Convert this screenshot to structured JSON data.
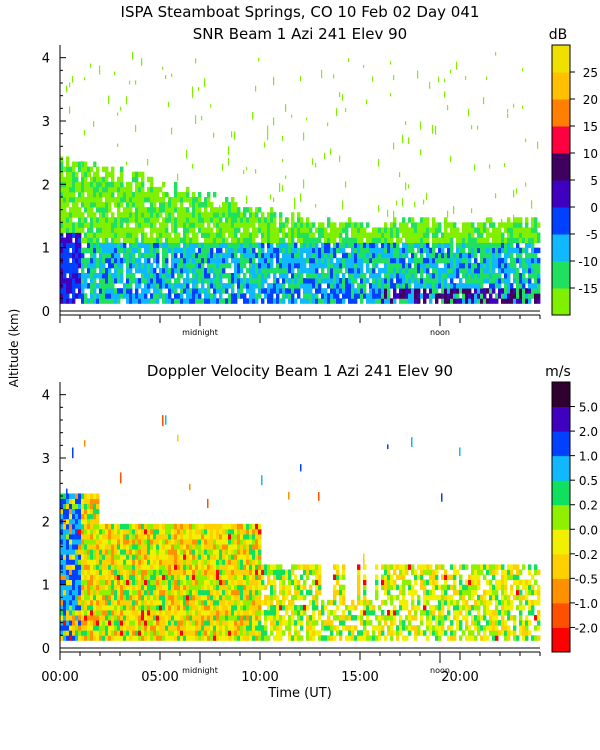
{
  "figure": {
    "title_line1": "ISPA Steamboat Springs, CO  10 Feb 02 Day 041",
    "ylabel": "Altitude (km)",
    "xlabel": "Time (UT)"
  },
  "chart_data": [
    {
      "type": "heatmap",
      "title": "SNR Beam 1 Azi 241 Elev 90",
      "ylabel": "Altitude (km)",
      "xlim_hours": [
        0,
        24
      ],
      "ylim_km": [
        0,
        4.2
      ],
      "yticks": [
        "0",
        "1",
        "2",
        "3",
        "4"
      ],
      "xmarks": [
        {
          "label": "midnight",
          "hour": 7
        },
        {
          "label": "noon",
          "hour": 19
        }
      ],
      "colorbar": {
        "unit": "dB",
        "tick_labels": [
          "-15",
          "-10",
          "-5",
          "0",
          "5",
          "10",
          "15",
          "20",
          "25"
        ],
        "colors": [
          "#80f000",
          "#20e060",
          "#10b8ff",
          "#0040ff",
          "#4000c0",
          "#400060",
          "#ff0040",
          "#ff8000",
          "#ffc000",
          "#f0e000"
        ]
      },
      "description_layers": [
        {
          "altitude_km": [
            0.1,
            0.35
          ],
          "level": "high",
          "hours": [
            0,
            24
          ]
        },
        {
          "altitude_km": [
            0.3,
            1.8
          ],
          "level": "mid",
          "hours": [
            0,
            12
          ]
        },
        {
          "altitude_km": [
            0.1,
            1.3
          ],
          "level": "mid",
          "hours": [
            12,
            24
          ]
        }
      ]
    },
    {
      "type": "heatmap",
      "title": "Doppler Velocity Beam 1 Azi 241 Elev 90",
      "xlabel": "Time (UT)",
      "xlim_hours": [
        0,
        24
      ],
      "ylim_km": [
        0,
        4.2
      ],
      "yticks": [
        "0",
        "1",
        "2",
        "3",
        "4"
      ],
      "xtick_labels": [
        "00:00",
        "05:00",
        "10:00",
        "15:00",
        "20:00"
      ],
      "xmarks": [
        {
          "label": "midnight",
          "hour": 7
        },
        {
          "label": "noon",
          "hour": 19
        }
      ],
      "colorbar": {
        "unit": "m/s",
        "tick_labels": [
          "-2.0",
          "-1.0",
          "-0.5",
          "-0.2",
          "0.0",
          "0.2",
          "0.5",
          "1.0",
          "2.0",
          "5.0"
        ],
        "colors": [
          "#ff0000",
          "#ff5000",
          "#ff9000",
          "#ffd000",
          "#f0f000",
          "#90f000",
          "#10e060",
          "#10b8ff",
          "#0040ff",
          "#4000c0",
          "#300030"
        ]
      }
    }
  ]
}
